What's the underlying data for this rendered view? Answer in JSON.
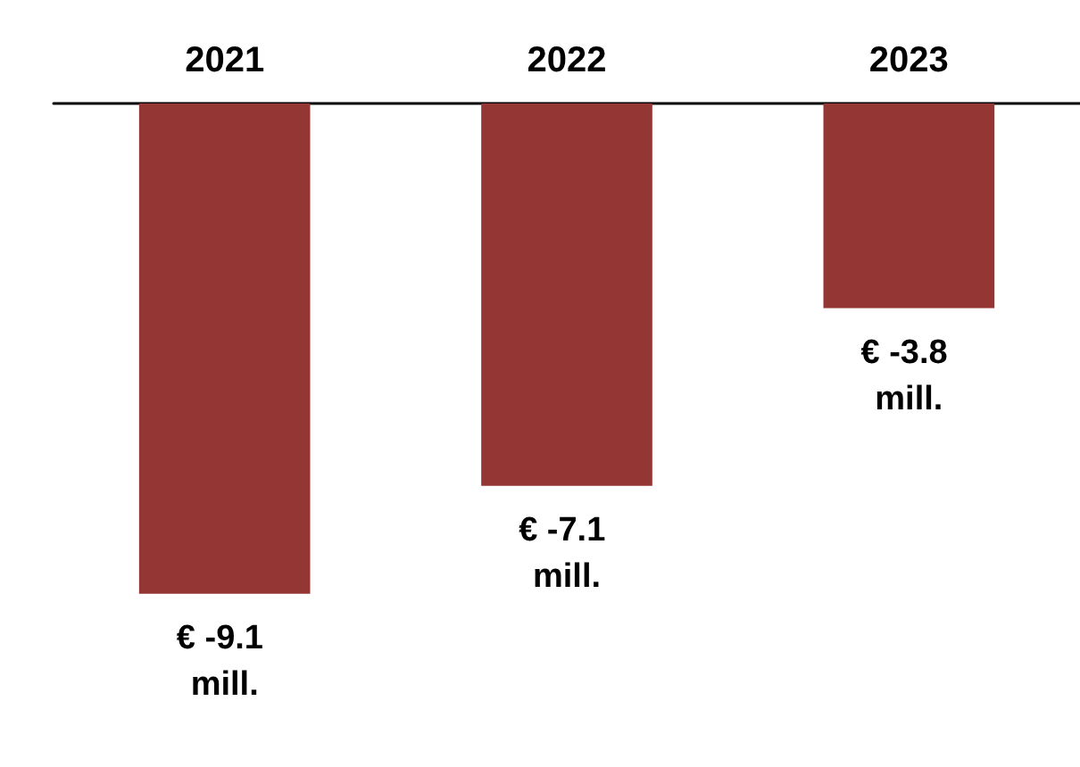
{
  "chart_data": {
    "type": "bar",
    "categories": [
      "2021",
      "2022",
      "2023"
    ],
    "values": [
      -9.1,
      -7.1,
      -3.8
    ],
    "color": "#943634",
    "value_labels": [
      "€ -9.1 mill.",
      "€ -7.1 mill.",
      "€ -3.8 mill."
    ]
  }
}
